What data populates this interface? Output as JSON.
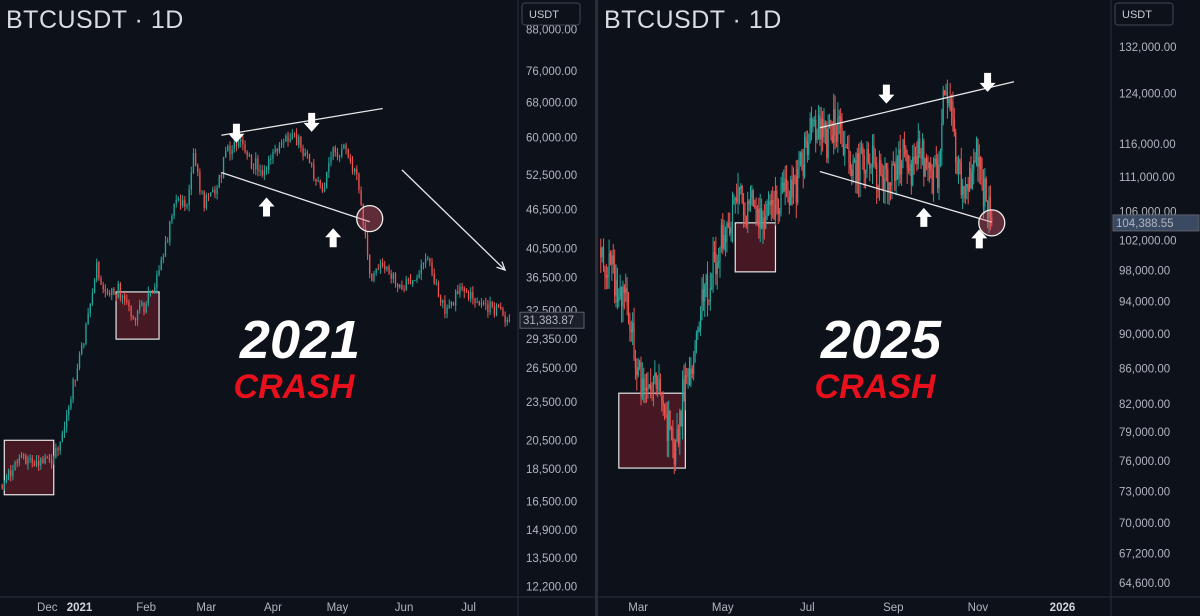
{
  "chart_data": [
    {
      "type": "candlestick",
      "title": "BTCUSDT · 1D",
      "currency": "USDT",
      "y_ticks": [
        "88,000.00",
        "76,000.00",
        "68,000.00",
        "60,000.00",
        "52,500.00",
        "46,500.00",
        "40,500.00",
        "36,500.00",
        "32,500.00",
        "29,350.00",
        "26,500.00",
        "23,500.00",
        "20,500.00",
        "18,500.00",
        "16,500.00",
        "14,900.00",
        "13,500.00",
        "12,200.00"
      ],
      "y_tick_values": [
        88000,
        76000,
        68000,
        60000,
        52500,
        46500,
        40500,
        36500,
        32500,
        29350,
        26500,
        23500,
        20500,
        18500,
        16500,
        14900,
        13500,
        12200
      ],
      "y_scale": "log",
      "ylim": [
        11800,
        95000
      ],
      "x_ticks": [
        {
          "label": "Dec",
          "day": -15,
          "bold": false
        },
        {
          "label": "2021",
          "day": 0,
          "bold": true
        },
        {
          "label": "Feb",
          "day": 31,
          "bold": false
        },
        {
          "label": "Mar",
          "day": 59,
          "bold": false
        },
        {
          "label": "Apr",
          "day": 90,
          "bold": false
        },
        {
          "label": "May",
          "day": 120,
          "bold": false
        },
        {
          "label": "Jun",
          "day": 151,
          "bold": false
        },
        {
          "label": "Jul",
          "day": 181,
          "bold": false
        }
      ],
      "xlim": [
        -37,
        204
      ],
      "current_price": "31,383.87",
      "current_price_value": 31383.87,
      "price_path": [
        [
          -36,
          17500
        ],
        [
          -28,
          19300
        ],
        [
          -20,
          19000
        ],
        [
          -12,
          19100
        ],
        [
          -5,
          23200
        ],
        [
          2,
          29500
        ],
        [
          8,
          38000
        ],
        [
          12,
          34000
        ],
        [
          18,
          35000
        ],
        [
          25,
          32000
        ],
        [
          30,
          33000
        ],
        [
          38,
          38000
        ],
        [
          44,
          47000
        ],
        [
          50,
          48000
        ],
        [
          53,
          56000
        ],
        [
          58,
          47500
        ],
        [
          63,
          49000
        ],
        [
          68,
          56500
        ],
        [
          73,
          59500
        ],
        [
          80,
          55000
        ],
        [
          86,
          53500
        ],
        [
          92,
          58500
        ],
        [
          100,
          60500
        ],
        [
          107,
          55000
        ],
        [
          113,
          49500
        ],
        [
          118,
          57000
        ],
        [
          124,
          57500
        ],
        [
          130,
          51000
        ],
        [
          135,
          36500
        ],
        [
          140,
          38500
        ],
        [
          148,
          35500
        ],
        [
          155,
          36000
        ],
        [
          162,
          38500
        ],
        [
          170,
          32500
        ],
        [
          178,
          35000
        ],
        [
          186,
          33000
        ],
        [
          194,
          32500
        ],
        [
          200,
          31383
        ]
      ],
      "annotations": {
        "year_label": "2021",
        "crash_label": "CRASH",
        "resistance_line": [
          [
            66,
            60500
          ],
          [
            141,
            66500
          ]
        ],
        "support_line": [
          [
            66,
            53000
          ],
          [
            135,
            44500
          ]
        ],
        "trend_arrow": [
          [
            150,
            53500
          ],
          [
            198,
            37500
          ]
        ],
        "down_arrows": [
          [
            73,
            63000
          ],
          [
            108,
            65500
          ]
        ],
        "up_arrows": [
          [
            87,
            48500
          ],
          [
            118,
            43500
          ]
        ],
        "circle": [
          135,
          45000
        ],
        "boxes": [
          {
            "x": [
              -35,
              -12
            ],
            "y": [
              16900,
              20500
            ]
          },
          {
            "x": [
              17,
              37
            ],
            "y": [
              29350,
              34700
            ]
          }
        ]
      }
    },
    {
      "type": "candlestick",
      "title": "BTCUSDT · 1D",
      "currency": "USDT",
      "y_ticks": [
        "132,000.00",
        "124,000.00",
        "116,000.00",
        "111,000.00",
        "106,000.00",
        "102,000.00",
        "98,000.00",
        "94,000.00",
        "90,000.00",
        "86,000.00",
        "82,000.00",
        "79,000.00",
        "76,000.00",
        "73,000.00",
        "70,000.00",
        "67,200.00",
        "64,600.00"
      ],
      "y_tick_values": [
        132000,
        124000,
        116000,
        111000,
        106000,
        102000,
        98000,
        94000,
        90000,
        86000,
        82000,
        79000,
        76000,
        73000,
        70000,
        67200,
        64600
      ],
      "y_scale": "log",
      "ylim": [
        63500,
        139000
      ],
      "x_ticks": [
        {
          "label": "Mar",
          "day": 59,
          "bold": false
        },
        {
          "label": "May",
          "day": 120,
          "bold": false
        },
        {
          "label": "Jul",
          "day": 181,
          "bold": false
        },
        {
          "label": "Sep",
          "day": 243,
          "bold": false
        },
        {
          "label": "Nov",
          "day": 304,
          "bold": false
        },
        {
          "label": "2026",
          "day": 365,
          "bold": true
        }
      ],
      "xlim": [
        30,
        400
      ],
      "current_price": "104,388.55",
      "current_price_value": 104388.55,
      "price_path": [
        [
          32,
          101000
        ],
        [
          42,
          97000
        ],
        [
          50,
          94000
        ],
        [
          58,
          87000
        ],
        [
          65,
          82000
        ],
        [
          72,
          84500
        ],
        [
          80,
          80000
        ],
        [
          86,
          77000
        ],
        [
          92,
          84000
        ],
        [
          98,
          86000
        ],
        [
          104,
          94000
        ],
        [
          110,
          96000
        ],
        [
          118,
          102000
        ],
        [
          124,
          104000
        ],
        [
          130,
          109000
        ],
        [
          136,
          105000
        ],
        [
          142,
          108000
        ],
        [
          148,
          104500
        ],
        [
          156,
          106000
        ],
        [
          163,
          109000
        ],
        [
          170,
          108000
        ],
        [
          176,
          112000
        ],
        [
          182,
          117000
        ],
        [
          188,
          118000
        ],
        [
          195,
          116000
        ],
        [
          200,
          119000
        ],
        [
          208,
          116000
        ],
        [
          214,
          112000
        ],
        [
          222,
          114000
        ],
        [
          228,
          113000
        ],
        [
          236,
          110000
        ],
        [
          242,
          112000
        ],
        [
          250,
          114000
        ],
        [
          256,
          112000
        ],
        [
          262,
          115000
        ],
        [
          268,
          111000
        ],
        [
          275,
          112000
        ],
        [
          279,
          122000
        ],
        [
          284,
          123000
        ],
        [
          288,
          115000
        ],
        [
          292,
          110000
        ],
        [
          296,
          108000
        ],
        [
          300,
          112000
        ],
        [
          303,
          114000
        ],
        [
          306,
          110000
        ],
        [
          310,
          108000
        ],
        [
          314,
          104388
        ]
      ],
      "annotations": {
        "year_label": "2025",
        "crash_label": "CRASH",
        "resistance_line": [
          [
            190,
            118500
          ],
          [
            330,
            126000
          ]
        ],
        "support_line": [
          [
            190,
            111800
          ],
          [
            314,
            104500
          ]
        ],
        "down_arrows": [
          [
            238,
            125500
          ],
          [
            311,
            127500
          ]
        ],
        "up_arrows": [
          [
            265,
            106500
          ],
          [
            305,
            103500
          ]
        ],
        "circle": [
          314,
          104400
        ],
        "boxes": [
          {
            "x": [
              129,
              158
            ],
            "y": [
              97800,
              104400
            ]
          },
          {
            "x": [
              45,
              93
            ],
            "y": [
              75300,
              83200
            ]
          }
        ]
      }
    }
  ]
}
